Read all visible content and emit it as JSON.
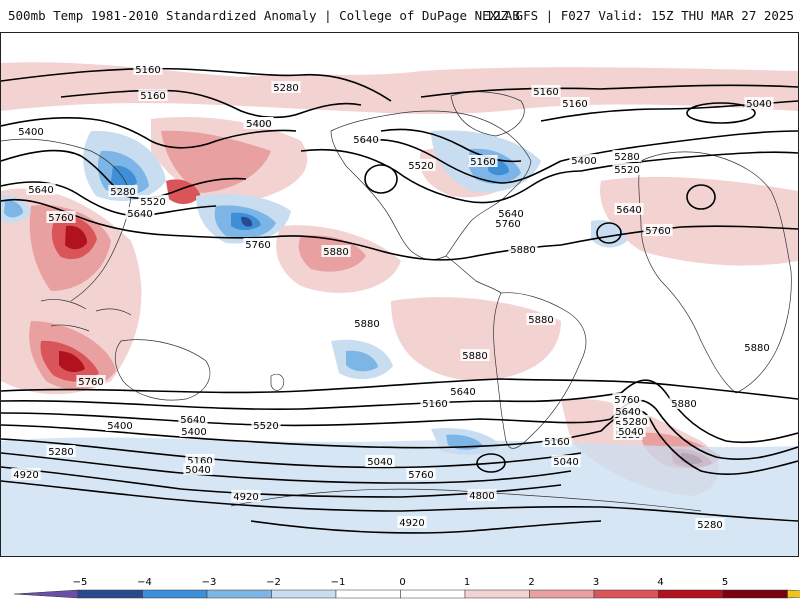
{
  "header": {
    "title": "500mb Temp 1981-2010 Standardized Anomaly | College of DuPage NEXLAB",
    "run_info": "12Z GFS | F027 Valid: 15Z THU MAR 27 2025"
  },
  "colors": {
    "neg5": "#6a4fa8",
    "neg4": "#2b4a8e",
    "neg3": "#3d8fd8",
    "neg2": "#7db6e6",
    "neg1": "#c9ddf0",
    "pos1": "#f3d2d2",
    "pos2": "#e9a0a0",
    "pos3": "#d9555a",
    "pos4": "#b0121e",
    "pos5": "#7a0010",
    "pos6": "#f0c419"
  },
  "legend": {
    "ticks": [
      "−5",
      "−4",
      "−3",
      "−2",
      "−1",
      "0",
      "1",
      "2",
      "3",
      "4",
      "5"
    ]
  },
  "contour_labels": [
    "5160",
    "5160",
    "5280",
    "5400",
    "5400",
    "5640",
    "5280",
    "5520",
    "5640",
    "5760",
    "5640",
    "5760",
    "5400",
    "5520",
    "5160",
    "5640",
    "5760",
    "5880",
    "5880",
    "5160",
    "5160",
    "5040",
    "5280",
    "5400",
    "5520",
    "5640",
    "5760",
    "5880",
    "5880",
    "5880",
    "5880",
    "5760",
    "5640",
    "5640",
    "5400",
    "5160",
    "5040",
    "5760",
    "5880",
    "5760",
    "5640",
    "5400",
    "5520",
    "5280",
    "5160",
    "5040",
    "5520",
    "5400",
    "5280",
    "5160",
    "5040",
    "4920",
    "4920",
    "4800",
    "4920",
    "5280",
    "5040"
  ]
}
